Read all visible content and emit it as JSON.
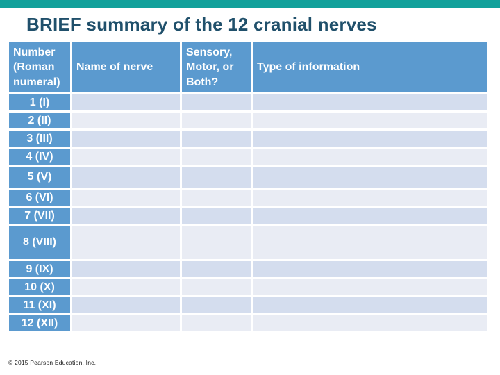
{
  "slide": {
    "title": "BRIEF summary of the 12 cranial nerves",
    "copyright": "© 2015 Pearson Education, Inc."
  },
  "table": {
    "columns": [
      "Number (Roman numeral)",
      "Name of nerve",
      "Sensory, Motor, or Both?",
      "Type of information"
    ],
    "rows": [
      {
        "number": "1 (I)",
        "name": "",
        "sensory_motor_both": "",
        "type_of_information": ""
      },
      {
        "number": "2 (II)",
        "name": "",
        "sensory_motor_both": "",
        "type_of_information": ""
      },
      {
        "number": "3 (III)",
        "name": "",
        "sensory_motor_both": "",
        "type_of_information": ""
      },
      {
        "number": "4 (IV)",
        "name": "",
        "sensory_motor_both": "",
        "type_of_information": ""
      },
      {
        "number": "5 (V)",
        "name": "",
        "sensory_motor_both": "",
        "type_of_information": ""
      },
      {
        "number": "6 (VI)",
        "name": "",
        "sensory_motor_both": "",
        "type_of_information": ""
      },
      {
        "number": "7 (VII)",
        "name": "",
        "sensory_motor_both": "",
        "type_of_information": ""
      },
      {
        "number": "8 (VIII)",
        "name": "",
        "sensory_motor_both": "",
        "type_of_information": ""
      },
      {
        "number": "9 (IX)",
        "name": "",
        "sensory_motor_both": "",
        "type_of_information": ""
      },
      {
        "number": "10 (X)",
        "name": "",
        "sensory_motor_both": "",
        "type_of_information": ""
      },
      {
        "number": "11 (XI)",
        "name": "",
        "sensory_motor_both": "",
        "type_of_information": ""
      },
      {
        "number": "12 (XII)",
        "name": "",
        "sensory_motor_both": "",
        "type_of_information": ""
      }
    ]
  },
  "colors": {
    "accent_bar": "#12a19b",
    "title_text": "#20506b",
    "table_header_bg": "#5b9acf",
    "header_text": "#ffffff",
    "row_band_dark": "#d4ddee",
    "row_band_light": "#e9ecf4",
    "slide_background": "#ffffff"
  }
}
